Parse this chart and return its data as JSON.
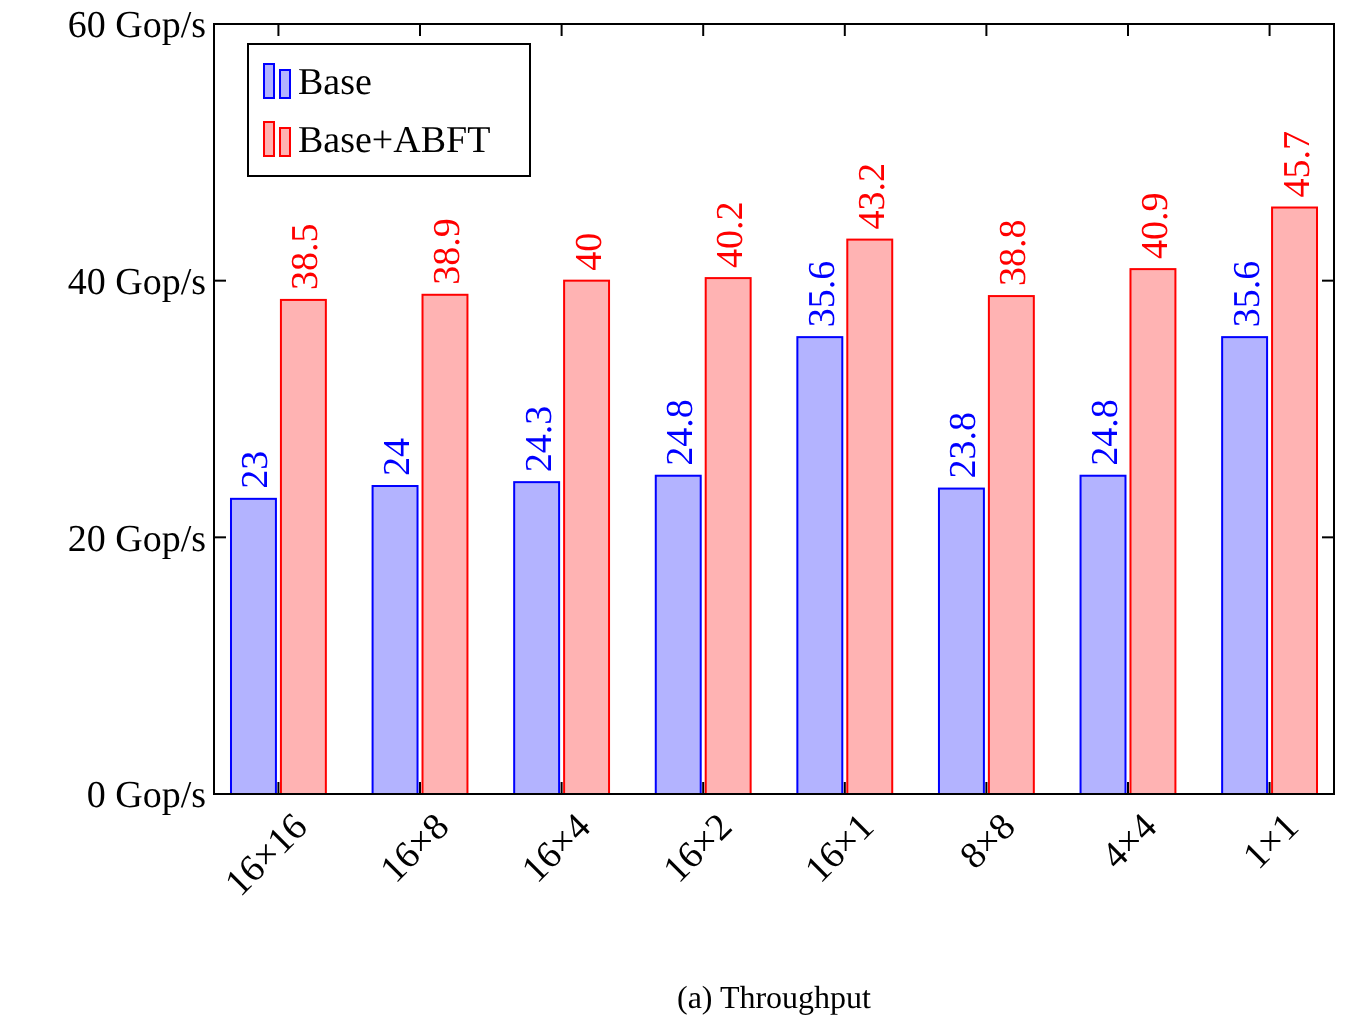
{
  "chart_data": {
    "type": "bar",
    "categories": [
      "16×16",
      "16×8",
      "16×4",
      "16×2",
      "16×1",
      "8×8",
      "4×4",
      "1×1"
    ],
    "series": [
      {
        "name": "Base",
        "color": "#b3b3ff",
        "values": [
          23,
          24,
          24.3,
          24.8,
          35.6,
          23.8,
          24.8,
          35.6
        ]
      },
      {
        "name": "Base+ABFT",
        "color": "#ffb3b3",
        "values": [
          38.5,
          38.9,
          40,
          40.2,
          43.2,
          38.8,
          40.9,
          45.7
        ]
      }
    ],
    "ylim": [
      0,
      60
    ],
    "yticks": [
      {
        "value": 0,
        "label": "0 Gop/s"
      },
      {
        "value": 20,
        "label": "20 Gop/s"
      },
      {
        "value": 40,
        "label": "40 Gop/s"
      },
      {
        "value": 60,
        "label": "60 Gop/s"
      }
    ],
    "data_labels": true,
    "legend": "top left",
    "grid": false,
    "annotations": [
      "(a) Throughput"
    ]
  }
}
